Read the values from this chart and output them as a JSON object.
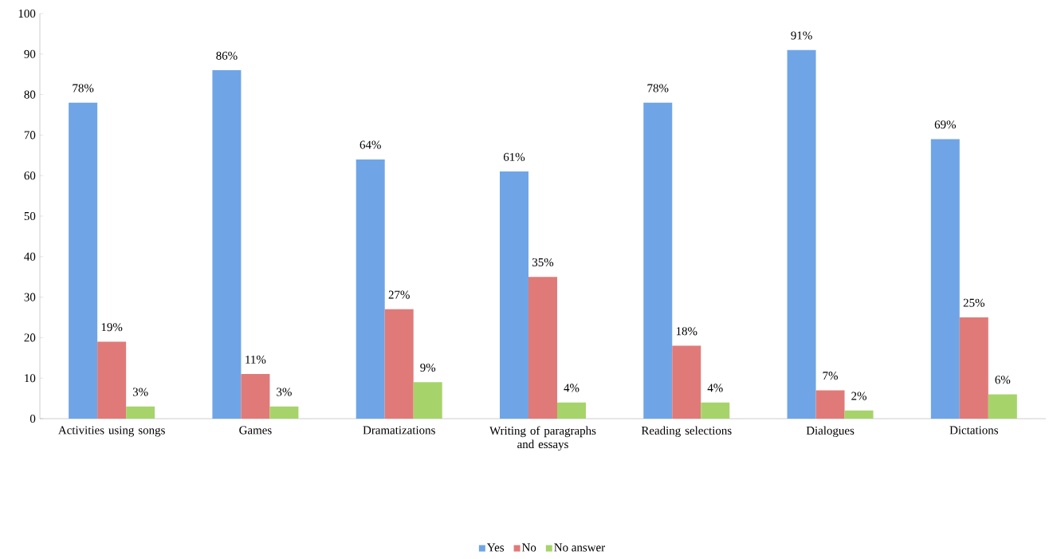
{
  "chart_data": {
    "type": "bar",
    "categories": [
      "Activities using songs",
      "Games",
      "Dramatizations",
      "Writing of paragraphs and essays",
      "Reading selections",
      "Dialogues",
      "Dictations"
    ],
    "series": [
      {
        "name": "Yes",
        "color": "#6fa5e6",
        "values": [
          78,
          86,
          64,
          61,
          78,
          91,
          69
        ],
        "value_labels": [
          "78%",
          "86%",
          "64%",
          "61%",
          "78%",
          "91%",
          "69%"
        ]
      },
      {
        "name": "No",
        "color": "#e07a78",
        "values": [
          19,
          11,
          27,
          35,
          18,
          7,
          25
        ],
        "value_labels": [
          "19%",
          "11%",
          "27%",
          "35%",
          "18%",
          "7%",
          "25%"
        ]
      },
      {
        "name": "No answer",
        "color": "#a6d46a",
        "values": [
          3,
          3,
          9,
          4,
          4,
          2,
          6
        ],
        "value_labels": [
          "3%",
          "3%",
          "9%",
          "4%",
          "4%",
          "2%",
          "6%"
        ]
      }
    ],
    "ylim": [
      0,
      100
    ],
    "yticks": [
      0,
      10,
      20,
      30,
      40,
      50,
      60,
      70,
      80,
      90,
      100
    ],
    "grid": false,
    "legend": "bottom"
  }
}
